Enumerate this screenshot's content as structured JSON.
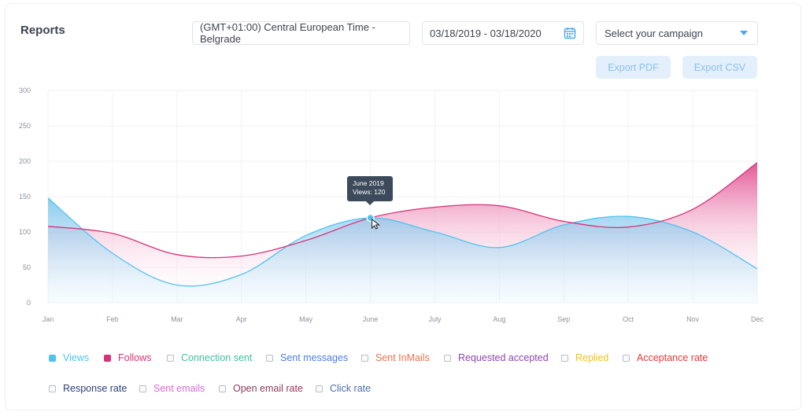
{
  "header": {
    "title": "Reports",
    "timezone": "(GMT+01:00) Central European Time - Belgrade",
    "date_range": "03/18/2019 - 03/18/2020",
    "campaign_placeholder": "Select your campaign",
    "export_pdf": "Export PDF",
    "export_csv": "Export CSV"
  },
  "tooltip": {
    "line1": "June 2019",
    "line2": "Views: 120"
  },
  "legend": [
    {
      "label": "Views",
      "color": "#4fc3f0",
      "checked": true
    },
    {
      "label": "Follows",
      "color": "#d6337a",
      "checked": true
    },
    {
      "label": "Connection sent",
      "color": "#3fbfa2",
      "checked": false
    },
    {
      "label": "Sent messages",
      "color": "#4a7fe0",
      "checked": false
    },
    {
      "label": "Sent InMails",
      "color": "#e8734a",
      "checked": false
    },
    {
      "label": "Requested accepted",
      "color": "#8e44ad",
      "checked": false
    },
    {
      "label": "Replied",
      "color": "#f0c419",
      "checked": false
    },
    {
      "label": "Acceptance rate",
      "color": "#e53935",
      "checked": false
    },
    {
      "label": "Response rate",
      "color": "#2c3e7a",
      "checked": false
    },
    {
      "label": "Sent emails",
      "color": "#d86bd8",
      "checked": false
    },
    {
      "label": "Open email rate",
      "color": "#8e3a5c",
      "checked": false
    },
    {
      "label": "Click rate",
      "color": "#4a6ea8",
      "checked": false
    }
  ],
  "chart_data": {
    "type": "area",
    "categories": [
      "Jan",
      "Feb",
      "Mar",
      "Apr",
      "May",
      "June",
      "July",
      "Aug",
      "Sep",
      "Oct",
      "Nov",
      "Dec"
    ],
    "ylim": [
      0,
      300
    ],
    "yticks": [
      0,
      50,
      100,
      150,
      200,
      250,
      300
    ],
    "series": [
      {
        "name": "Views",
        "color": "#4fc3f0",
        "values": [
          148,
          70,
          25,
          40,
          95,
          120,
          100,
          78,
          110,
          122,
          100,
          48
        ]
      },
      {
        "name": "Follows",
        "color": "#d6337a",
        "values": [
          108,
          98,
          68,
          66,
          88,
          120,
          135,
          137,
          115,
          107,
          132,
          198
        ]
      }
    ]
  }
}
